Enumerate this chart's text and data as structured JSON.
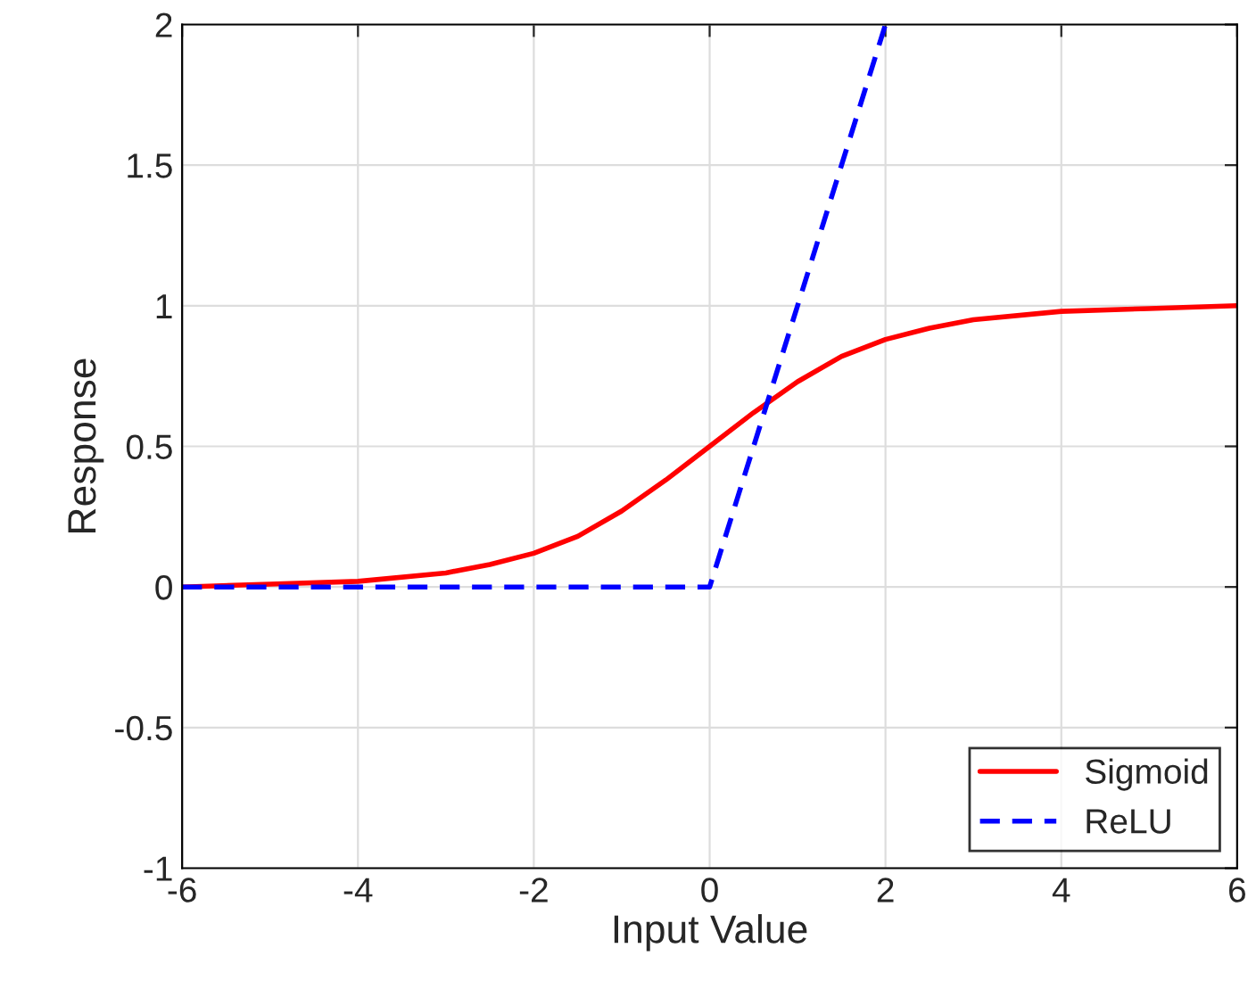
{
  "chart_data": {
    "type": "line",
    "xlabel": "Input Value",
    "ylabel": "Response",
    "xlim": [
      -6,
      6
    ],
    "ylim": [
      -1,
      2
    ],
    "xticks": [
      -6,
      -4,
      -2,
      0,
      2,
      4,
      6
    ],
    "yticks": [
      -1,
      -0.5,
      0,
      0.5,
      1,
      1.5,
      2
    ],
    "grid": true,
    "legend": "bottom right",
    "series": [
      {
        "name": "Sigmoid",
        "color": "#ff0000",
        "line_style": "solid",
        "x": [
          -6,
          -5,
          -4,
          -3,
          -2.5,
          -2,
          -1.5,
          -1,
          -0.5,
          0,
          0.5,
          1,
          1.5,
          2,
          2.5,
          3,
          4,
          5,
          6
        ],
        "values": [
          0.0,
          0.01,
          0.02,
          0.05,
          0.08,
          0.12,
          0.18,
          0.27,
          0.38,
          0.5,
          0.62,
          0.73,
          0.82,
          0.88,
          0.92,
          0.95,
          0.98,
          0.99,
          1.0
        ]
      },
      {
        "name": "ReLU",
        "color": "#0000ff",
        "line_style": "dashed",
        "x": [
          -6,
          0,
          2
        ],
        "values": [
          0,
          0,
          2
        ]
      }
    ]
  }
}
